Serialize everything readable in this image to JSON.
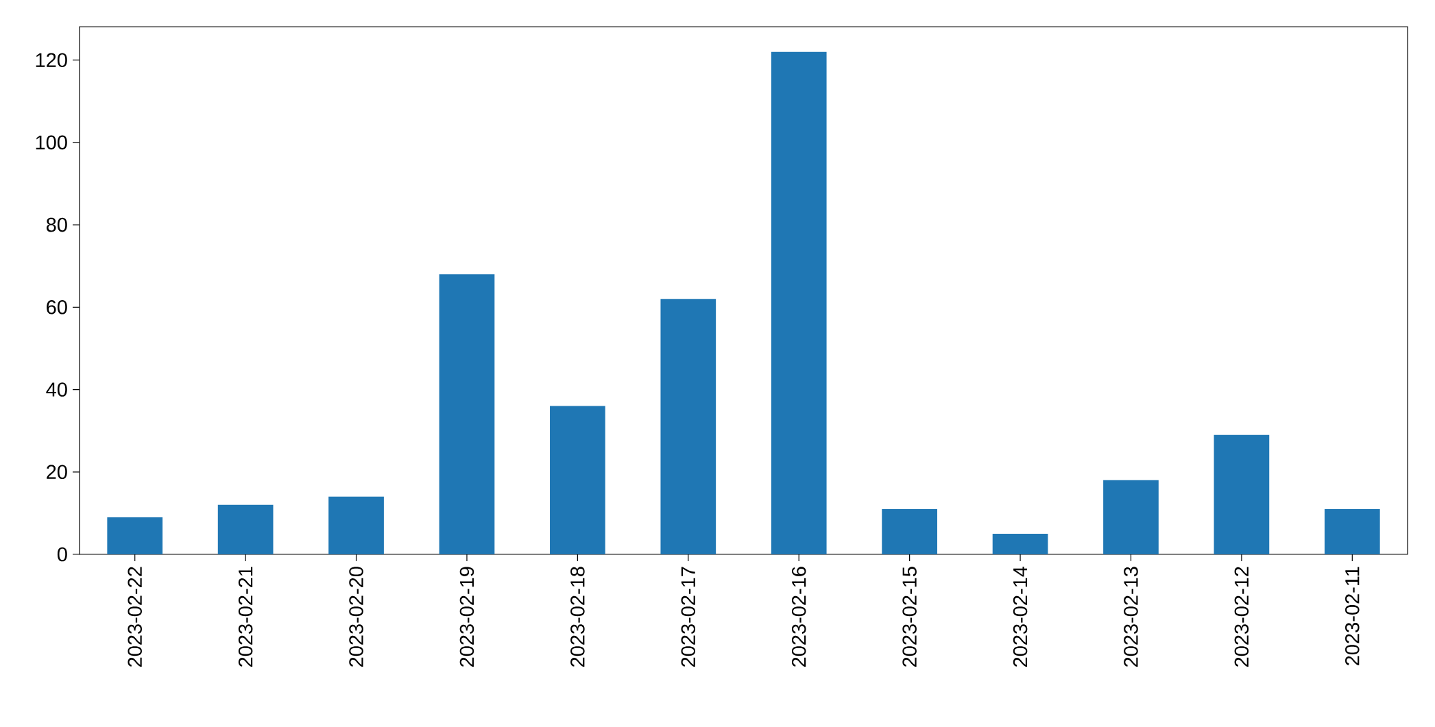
{
  "chart_data": {
    "type": "bar",
    "categories": [
      "2023-02-22",
      "2023-02-21",
      "2023-02-20",
      "2023-02-19",
      "2023-02-18",
      "2023-02-17",
      "2023-02-16",
      "2023-02-15",
      "2023-02-14",
      "2023-02-13",
      "2023-02-12",
      "2023-02-11"
    ],
    "values": [
      9,
      12,
      14,
      68,
      36,
      62,
      122,
      11,
      5,
      18,
      29,
      11
    ],
    "color": "#1f77b4",
    "ylim": [
      0,
      128.1
    ],
    "yticks": [
      0,
      20,
      40,
      60,
      80,
      100,
      120
    ]
  }
}
